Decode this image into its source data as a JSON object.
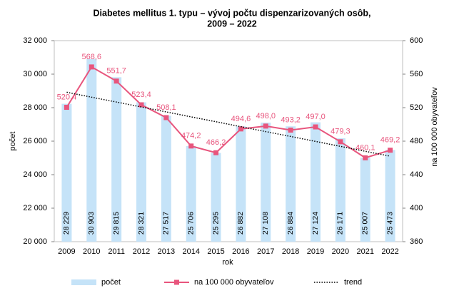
{
  "chart_data": {
    "type": "bar-line",
    "title": [
      "Diabetes mellitus 1. typu – vývoj počtu dispenzarizovaných osôb,",
      "2009 – 2022"
    ],
    "x_label": "rok",
    "y_label": "počet",
    "y2_label": "na 100 000 obyvateľov",
    "categories": [
      "2009",
      "2010",
      "2011",
      "2012",
      "2013",
      "2014",
      "2015",
      "2016",
      "2017",
      "2018",
      "2019",
      "2020",
      "2021",
      "2022"
    ],
    "series": [
      {
        "name": "počet",
        "type": "bar",
        "color": "#c5e3f8",
        "values": [
          28229,
          30903,
          29815,
          28321,
          27517,
          25706,
          25295,
          26882,
          27108,
          26884,
          27124,
          26171,
          25007,
          25473
        ],
        "value_labels": [
          "28 229",
          "30 903",
          "29 815",
          "28 321",
          "27 517",
          "25 706",
          "25 295",
          "26 882",
          "27 108",
          "26 884",
          "27 124",
          "26 171",
          "25 007",
          "25 473"
        ]
      },
      {
        "name": "na 100 000 obyvateľov",
        "type": "line",
        "axis": "y2",
        "color": "#e8557d",
        "values": [
          520.4,
          568.6,
          551.7,
          523.4,
          508.1,
          474.2,
          466.2,
          494.6,
          498.0,
          493.2,
          497.0,
          479.3,
          460.1,
          469.2
        ],
        "value_labels": [
          "520,4",
          "568,6",
          "551,7",
          "523,4",
          "508,1",
          "474,2",
          "466,2",
          "494,6",
          "498,0",
          "493,2",
          "497,0",
          "479,3",
          "460,1",
          "469,2"
        ]
      },
      {
        "name": "trend",
        "type": "trend",
        "axis": "y2",
        "color": "#000000",
        "values": [
          538.4,
          532.5,
          526.7,
          520.8,
          514.9,
          509.0,
          503.2,
          497.3,
          491.4,
          485.6,
          479.7,
          473.8,
          467.9,
          462.1
        ]
      }
    ],
    "ylim": [
      20000,
      32000
    ],
    "yticks": [
      {
        "value": 20000,
        "label": "20 000"
      },
      {
        "value": 22000,
        "label": "22 000"
      },
      {
        "value": 24000,
        "label": "24 000"
      },
      {
        "value": 26000,
        "label": "26 000"
      },
      {
        "value": 28000,
        "label": "28 000"
      },
      {
        "value": 30000,
        "label": "30 000"
      },
      {
        "value": 32000,
        "label": "32 000"
      }
    ],
    "y2lim": [
      360,
      600
    ],
    "y2ticks": [
      360,
      400,
      440,
      480,
      520,
      560,
      600
    ],
    "legend": "bottom"
  }
}
